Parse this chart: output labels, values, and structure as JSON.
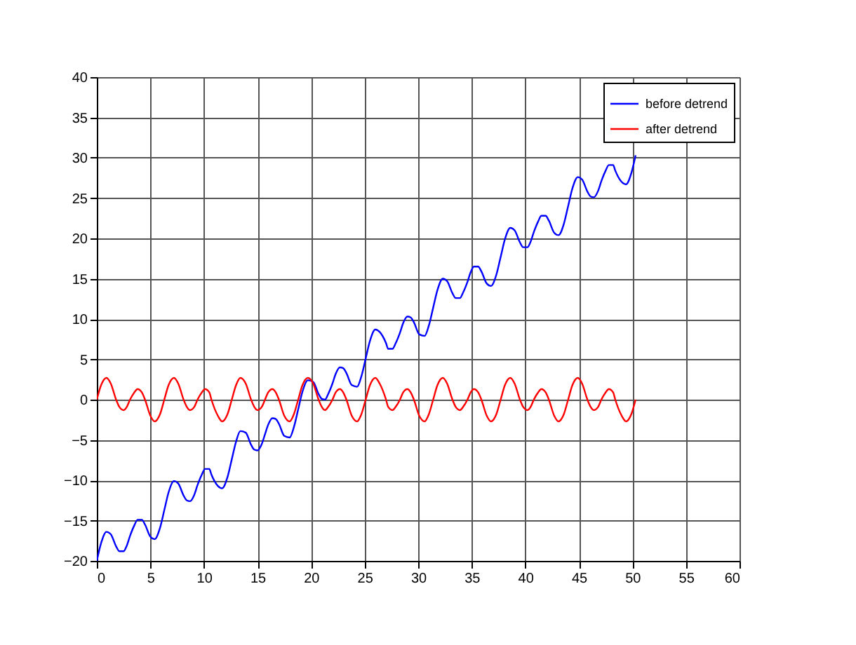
{
  "chart_data": {
    "type": "line",
    "x": [
      0,
      0.4,
      0.9,
      1.3,
      1.8,
      2.1,
      2.5,
      2.8,
      3.1,
      3.5,
      3.8,
      4.2,
      4.5,
      5.0,
      5.4,
      5.9,
      6.3,
      6.7,
      7.2,
      7.6,
      8.1,
      8.4,
      8.7,
      9.1,
      9.4,
      9.8,
      10.1,
      10.5,
      10.7,
      11.3,
      11.7,
      12.2,
      12.6,
      13.0,
      13.4,
      13.9,
      14.4,
      14.7,
      15.0,
      15.4,
      15.7,
      16.0,
      16.4,
      16.7,
      17.0,
      17.5,
      18.0,
      18.4,
      18.8,
      19.2,
      19.7,
      20.2,
      20.7,
      21.0,
      21.3,
      21.6,
      22.0,
      22.3,
      22.7,
      23.0,
      23.3,
      23.8,
      24.3,
      24.7,
      25.1,
      25.5,
      26.0,
      26.4,
      27.0,
      27.2,
      27.6,
      27.9,
      28.3,
      28.6,
      29.0,
      29.3,
      29.6,
      30.1,
      30.6,
      31.0,
      31.4,
      31.8,
      32.3,
      32.7,
      33.2,
      33.5,
      33.9,
      34.2,
      34.6,
      34.9,
      35.2,
      35.6,
      35.9,
      36.4,
      36.8,
      37.3,
      37.7,
      38.1,
      38.6,
      39.0,
      39.5,
      39.8,
      40.2,
      40.5,
      40.8,
      41.2,
      41.5,
      41.9,
      42.2,
      42.7,
      43.1,
      43.6,
      44.0,
      44.4,
      44.9,
      45.3,
      45.8,
      46.1,
      46.4,
      46.8,
      47.1,
      47.5,
      47.8,
      48.2,
      48.4,
      49.0,
      49.4,
      49.9,
      50.3
    ],
    "series": [
      {
        "name": "before detrend",
        "color": "#0000ff",
        "values": [
          -20,
          -17.8,
          -16.4,
          -16.7,
          -18.2,
          -18.8,
          -18.8,
          -18.1,
          -16.9,
          -15.6,
          -14.9,
          -14.9,
          -15.5,
          -17.0,
          -17.3,
          -15.9,
          -13.7,
          -11.5,
          -10.1,
          -10.4,
          -11.9,
          -12.5,
          -12.6,
          -11.8,
          -10.6,
          -9.3,
          -8.6,
          -8.6,
          -9.3,
          -10.7,
          -11.0,
          -9.6,
          -7.4,
          -5.2,
          -3.9,
          -4.1,
          -5.6,
          -6.2,
          -6.3,
          -5.5,
          -4.3,
          -3.1,
          -2.3,
          -2.4,
          -3.0,
          -4.5,
          -4.7,
          -3.4,
          -1.2,
          1.0,
          2.4,
          2.2,
          0.7,
          0.1,
          0.0,
          0.7,
          2.0,
          3.2,
          4.0,
          3.9,
          3.3,
          1.8,
          1.6,
          2.9,
          5.1,
          7.3,
          8.7,
          8.4,
          7.0,
          6.3,
          6.3,
          7.0,
          8.3,
          9.5,
          10.3,
          10.2,
          9.6,
          8.1,
          7.9,
          9.2,
          11.4,
          13.6,
          15.0,
          14.7,
          13.2,
          12.6,
          12.6,
          13.3,
          14.6,
          15.8,
          16.5,
          16.5,
          15.9,
          14.4,
          14.1,
          15.5,
          17.7,
          19.9,
          21.3,
          21.0,
          19.5,
          18.9,
          18.9,
          19.6,
          20.8,
          22.1,
          22.8,
          22.8,
          22.2,
          20.7,
          20.4,
          21.8,
          24.0,
          26.2,
          27.6,
          27.3,
          25.8,
          25.2,
          25.1,
          25.9,
          27.1,
          28.4,
          29.1,
          29.1,
          28.4,
          27.0,
          26.7,
          28.1,
          30.3
        ]
      },
      {
        "name": "after detrend",
        "color": "#ff0000",
        "values": [
          0,
          1.8,
          2.7,
          2,
          0,
          -0.9,
          -1.3,
          -0.9,
          0,
          0.9,
          1.3,
          0.9,
          0,
          -2,
          -2.7,
          -1.8,
          0,
          1.8,
          2.7,
          2,
          0,
          -0.9,
          -1.3,
          -0.9,
          0,
          0.9,
          1.3,
          0.9,
          0,
          -2,
          -2.7,
          -1.8,
          0,
          1.8,
          2.7,
          2,
          0,
          -0.9,
          -1.3,
          -0.9,
          0,
          0.9,
          1.3,
          0.9,
          0,
          -2,
          -2.7,
          -1.8,
          0,
          1.8,
          2.7,
          2,
          0,
          -0.9,
          -1.3,
          -0.9,
          0,
          0.9,
          1.3,
          0.9,
          0,
          -2,
          -2.7,
          -1.8,
          0,
          1.8,
          2.7,
          2,
          0,
          -0.9,
          -1.3,
          -0.9,
          0,
          0.9,
          1.3,
          0.9,
          0,
          -2,
          -2.7,
          -1.8,
          0,
          1.8,
          2.7,
          2,
          0,
          -0.9,
          -1.3,
          -0.9,
          0,
          0.9,
          1.3,
          0.9,
          0,
          -2,
          -2.7,
          -1.8,
          0,
          1.8,
          2.7,
          2,
          0,
          -0.9,
          -1.3,
          -0.9,
          0,
          0.9,
          1.3,
          0.9,
          0,
          -2,
          -2.7,
          -1.8,
          0,
          1.8,
          2.7,
          2,
          0,
          -0.9,
          -1.3,
          -0.9,
          0,
          0.9,
          1.3,
          0.9,
          0,
          -2,
          -2.7,
          -1.8,
          0
        ]
      }
    ],
    "xlim": [
      0,
      60
    ],
    "xticks": [
      0,
      5,
      10,
      15,
      20,
      25,
      30,
      35,
      40,
      45,
      50,
      55,
      60
    ],
    "ylim": [
      -20,
      40
    ],
    "yticks": [
      -20,
      -15,
      -10,
      -5,
      0,
      5,
      10,
      15,
      20,
      25,
      30,
      35,
      40
    ],
    "grid": true,
    "legend": "top right",
    "marker": "none",
    "line_style": "solid"
  }
}
